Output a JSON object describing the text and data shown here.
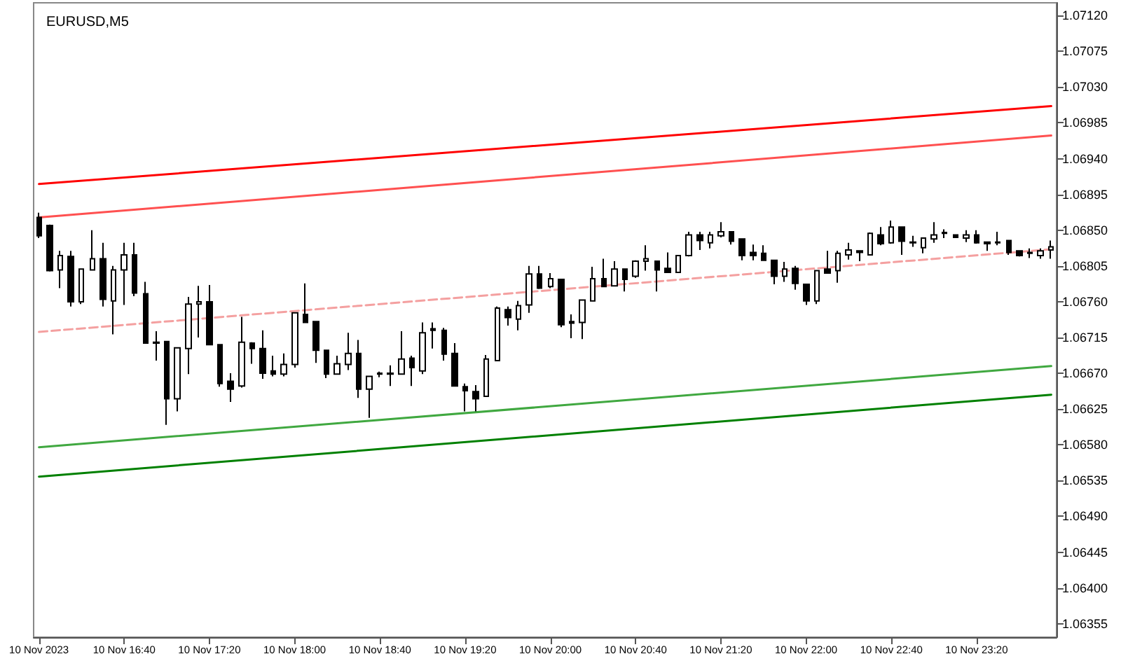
{
  "chart_data": {
    "type": "candlestick",
    "title": "EURUSD,M5",
    "grid": false,
    "marker": "none",
    "categories": [
      "10 Nov 2023",
      null,
      null,
      null,
      null,
      null,
      null,
      null,
      "10 Nov 16:40",
      null,
      null,
      null,
      null,
      null,
      null,
      null,
      "10 Nov 17:20",
      null,
      null,
      null,
      null,
      null,
      null,
      null,
      "10 Nov 18:00",
      null,
      null,
      null,
      null,
      null,
      null,
      null,
      "10 Nov 18:40",
      null,
      null,
      null,
      null,
      null,
      null,
      null,
      "10 Nov 19:20",
      null,
      null,
      null,
      null,
      null,
      null,
      null,
      "10 Nov 20:00",
      null,
      null,
      null,
      null,
      null,
      null,
      null,
      "10 Nov 20:40",
      null,
      null,
      null,
      null,
      null,
      null,
      null,
      "10 Nov 21:20",
      null,
      null,
      null,
      null,
      null,
      null,
      null,
      "10 Nov 22:00",
      null,
      null,
      null,
      null,
      null,
      null,
      null,
      "10 Nov 22:40",
      null,
      null,
      null,
      null,
      null,
      null,
      null,
      "10 Nov 23:20",
      null,
      null,
      null,
      null,
      null,
      null,
      null
    ],
    "ylim": [
      1.06338,
      1.07136
    ],
    "yticks": [
      {
        "value": 1.06355,
        "label": "1.06355"
      },
      {
        "value": 1.064,
        "label": "1.06400"
      },
      {
        "value": 1.06445,
        "label": "1.06445"
      },
      {
        "value": 1.0649,
        "label": "1.06490"
      },
      {
        "value": 1.06535,
        "label": "1.06535"
      },
      {
        "value": 1.0658,
        "label": "1.06580"
      },
      {
        "value": 1.06625,
        "label": "1.06625"
      },
      {
        "value": 1.0667,
        "label": "1.06670"
      },
      {
        "value": 1.06715,
        "label": "1.06715"
      },
      {
        "value": 1.0676,
        "label": "1.06760"
      },
      {
        "value": 1.06805,
        "label": "1.06805"
      },
      {
        "value": 1.0685,
        "label": "1.06850"
      },
      {
        "value": 1.06895,
        "label": "1.06895"
      },
      {
        "value": 1.0694,
        "label": "1.06940"
      },
      {
        "value": 1.06985,
        "label": "1.06985"
      },
      {
        "value": 1.0703,
        "label": "1.07030"
      },
      {
        "value": 1.07075,
        "label": "1.07075"
      },
      {
        "value": 1.0712,
        "label": "1.07120"
      }
    ],
    "series": [
      {
        "type": "line",
        "color": "#ff0000",
        "line_style": "solid",
        "values": [
          1.06908,
          null,
          null,
          null,
          null,
          null,
          null,
          null,
          null,
          null,
          null,
          null,
          null,
          null,
          null,
          null,
          null,
          null,
          null,
          null,
          null,
          null,
          null,
          null,
          null,
          null,
          null,
          null,
          null,
          null,
          null,
          null,
          null,
          null,
          null,
          null,
          null,
          null,
          null,
          null,
          null,
          null,
          null,
          null,
          null,
          null,
          null,
          null,
          null,
          null,
          null,
          null,
          null,
          null,
          null,
          null,
          null,
          null,
          null,
          null,
          null,
          null,
          null,
          null,
          null,
          null,
          null,
          null,
          null,
          null,
          null,
          null,
          null,
          null,
          null,
          null,
          null,
          null,
          null,
          null,
          null,
          null,
          null,
          null,
          null,
          null,
          null,
          null,
          null,
          null,
          null,
          null,
          null,
          null,
          null,
          1.07006
        ]
      },
      {
        "type": "line",
        "color": "#ff5050",
        "line_style": "solid",
        "values": [
          1.06866,
          null,
          null,
          null,
          null,
          null,
          null,
          null,
          null,
          null,
          null,
          null,
          null,
          null,
          null,
          null,
          null,
          null,
          null,
          null,
          null,
          null,
          null,
          null,
          null,
          null,
          null,
          null,
          null,
          null,
          null,
          null,
          null,
          null,
          null,
          null,
          null,
          null,
          null,
          null,
          null,
          null,
          null,
          null,
          null,
          null,
          null,
          null,
          null,
          null,
          null,
          null,
          null,
          null,
          null,
          null,
          null,
          null,
          null,
          null,
          null,
          null,
          null,
          null,
          null,
          null,
          null,
          null,
          null,
          null,
          null,
          null,
          null,
          null,
          null,
          null,
          null,
          null,
          null,
          null,
          null,
          null,
          null,
          null,
          null,
          null,
          null,
          null,
          null,
          null,
          null,
          null,
          null,
          null,
          null,
          1.06969
        ]
      },
      {
        "type": "line",
        "color": "#f4a0a0",
        "line_style": "dashed",
        "values": [
          1.06722,
          null,
          null,
          null,
          null,
          null,
          null,
          null,
          null,
          null,
          null,
          null,
          null,
          null,
          null,
          null,
          null,
          null,
          null,
          null,
          null,
          null,
          null,
          null,
          null,
          null,
          null,
          null,
          null,
          null,
          null,
          null,
          null,
          null,
          null,
          null,
          null,
          null,
          null,
          null,
          null,
          null,
          null,
          null,
          null,
          null,
          null,
          null,
          null,
          null,
          null,
          null,
          null,
          null,
          null,
          null,
          null,
          null,
          null,
          null,
          null,
          null,
          null,
          null,
          null,
          null,
          null,
          null,
          null,
          null,
          null,
          null,
          null,
          null,
          null,
          null,
          null,
          null,
          null,
          null,
          null,
          null,
          null,
          null,
          null,
          null,
          null,
          null,
          null,
          null,
          null,
          null,
          null,
          null,
          null,
          1.06826
        ]
      },
      {
        "type": "line",
        "color": "#40a840",
        "line_style": "solid",
        "values": [
          1.06577,
          null,
          null,
          null,
          null,
          null,
          null,
          null,
          null,
          null,
          null,
          null,
          null,
          null,
          null,
          null,
          null,
          null,
          null,
          null,
          null,
          null,
          null,
          null,
          null,
          null,
          null,
          null,
          null,
          null,
          null,
          null,
          null,
          null,
          null,
          null,
          null,
          null,
          null,
          null,
          null,
          null,
          null,
          null,
          null,
          null,
          null,
          null,
          null,
          null,
          null,
          null,
          null,
          null,
          null,
          null,
          null,
          null,
          null,
          null,
          null,
          null,
          null,
          null,
          null,
          null,
          null,
          null,
          null,
          null,
          null,
          null,
          null,
          null,
          null,
          null,
          null,
          null,
          null,
          null,
          null,
          null,
          null,
          null,
          null,
          null,
          null,
          null,
          null,
          null,
          null,
          null,
          null,
          null,
          null,
          1.06679
        ]
      },
      {
        "type": "line",
        "color": "#008000",
        "line_style": "solid",
        "values": [
          1.0654,
          null,
          null,
          null,
          null,
          null,
          null,
          null,
          null,
          null,
          null,
          null,
          null,
          null,
          null,
          null,
          null,
          null,
          null,
          null,
          null,
          null,
          null,
          null,
          null,
          null,
          null,
          null,
          null,
          null,
          null,
          null,
          null,
          null,
          null,
          null,
          null,
          null,
          null,
          null,
          null,
          null,
          null,
          null,
          null,
          null,
          null,
          null,
          null,
          null,
          null,
          null,
          null,
          null,
          null,
          null,
          null,
          null,
          null,
          null,
          null,
          null,
          null,
          null,
          null,
          null,
          null,
          null,
          null,
          null,
          null,
          null,
          null,
          null,
          null,
          null,
          null,
          null,
          null,
          null,
          null,
          null,
          null,
          null,
          null,
          null,
          null,
          null,
          null,
          null,
          null,
          null,
          null,
          null,
          null,
          1.06643
        ]
      },
      {
        "color": "#000000",
        "ohlc": [
          [
            1.06866,
            1.06872,
            1.0684,
            1.06843
          ],
          [
            1.06856,
            1.06857,
            1.06798,
            1.06799
          ],
          [
            1.068,
            1.06824,
            1.06777,
            1.06818
          ],
          [
            1.06817,
            1.06824,
            1.06754,
            1.0676
          ],
          [
            1.0676,
            1.06802,
            1.06757,
            1.06801
          ],
          [
            1.068,
            1.0685,
            1.06799,
            1.06814
          ],
          [
            1.06814,
            1.06834,
            1.06754,
            1.06763
          ],
          [
            1.06761,
            1.06805,
            1.06719,
            1.068
          ],
          [
            1.068,
            1.06834,
            1.06756,
            1.06819
          ],
          [
            1.06819,
            1.06834,
            1.06767,
            1.06771
          ],
          [
            1.0677,
            1.06785,
            1.06708,
            1.06708
          ],
          [
            1.06709,
            1.06723,
            1.06686,
            1.06708
          ],
          [
            1.0671,
            1.0671,
            1.06605,
            1.06638
          ],
          [
            1.06638,
            1.06702,
            1.06622,
            1.06702
          ],
          [
            1.06701,
            1.06766,
            1.06669,
            1.06757
          ],
          [
            1.06757,
            1.0678,
            1.06715,
            1.0676
          ],
          [
            1.0676,
            1.06781,
            1.06706,
            1.06706
          ],
          [
            1.06706,
            1.06706,
            1.06653,
            1.06657
          ],
          [
            1.0666,
            1.0667,
            1.06634,
            1.0665
          ],
          [
            1.06654,
            1.06741,
            1.06652,
            1.06709
          ],
          [
            1.06708,
            1.06709,
            1.06682,
            1.06701
          ],
          [
            1.06701,
            1.06724,
            1.06663,
            1.0667
          ],
          [
            1.06673,
            1.06692,
            1.06666,
            1.06669
          ],
          [
            1.06669,
            1.06695,
            1.06666,
            1.06681
          ],
          [
            1.06681,
            1.06747,
            1.06677,
            1.06746
          ],
          [
            1.06744,
            1.06783,
            1.06734,
            1.06734
          ],
          [
            1.06735,
            1.06735,
            1.06683,
            1.06699
          ],
          [
            1.06699,
            1.06699,
            1.06664,
            1.06669
          ],
          [
            1.06669,
            1.06692,
            1.06669,
            1.06682
          ],
          [
            1.06681,
            1.06721,
            1.06674,
            1.06695
          ],
          [
            1.06695,
            1.06712,
            1.06639,
            1.0665
          ],
          [
            1.0665,
            1.06666,
            1.06614,
            1.06666
          ],
          [
            1.06669,
            1.06672,
            1.06665,
            1.0667
          ],
          [
            1.06669,
            1.0668,
            1.06654,
            1.0667
          ],
          [
            1.06669,
            1.06723,
            1.06669,
            1.06688
          ],
          [
            1.06689,
            1.06692,
            1.06654,
            1.06677
          ],
          [
            1.06673,
            1.06734,
            1.06669,
            1.06721
          ],
          [
            1.06726,
            1.06734,
            1.06701,
            1.06724
          ],
          [
            1.06724,
            1.06727,
            1.06686,
            1.06694
          ],
          [
            1.06695,
            1.06708,
            1.06653,
            1.06654
          ],
          [
            1.06653,
            1.06657,
            1.06622,
            1.06648
          ],
          [
            1.06647,
            1.06655,
            1.06622,
            1.06638
          ],
          [
            1.06641,
            1.06693,
            1.06641,
            1.06688
          ],
          [
            1.06686,
            1.06754,
            1.06686,
            1.06752
          ],
          [
            1.0675,
            1.06754,
            1.0673,
            1.0674
          ],
          [
            1.06738,
            1.06761,
            1.06724,
            1.06755
          ],
          [
            1.06756,
            1.06805,
            1.06746,
            1.06795
          ],
          [
            1.06795,
            1.06805,
            1.06776,
            1.06777
          ],
          [
            1.06779,
            1.06796,
            1.06777,
            1.06789
          ],
          [
            1.06788,
            1.06789,
            1.06728,
            1.06731
          ],
          [
            1.06735,
            1.06744,
            1.06714,
            1.06733
          ],
          [
            1.06734,
            1.06763,
            1.06713,
            1.06762
          ],
          [
            1.06761,
            1.06804,
            1.06761,
            1.06789
          ],
          [
            1.06789,
            1.06814,
            1.06779,
            1.06779
          ],
          [
            1.0678,
            1.06811,
            1.0678,
            1.06801
          ],
          [
            1.06801,
            1.06802,
            1.06773,
            1.06788
          ],
          [
            1.06792,
            1.06812,
            1.0679,
            1.06811
          ],
          [
            1.06811,
            1.06831,
            1.06799,
            1.06814
          ],
          [
            1.06811,
            1.06811,
            1.06773,
            1.068
          ],
          [
            1.06802,
            1.06822,
            1.06796,
            1.06797
          ],
          [
            1.06797,
            1.06818,
            1.06796,
            1.06818
          ],
          [
            1.06818,
            1.06848,
            1.06817,
            1.06844
          ],
          [
            1.06844,
            1.06848,
            1.06825,
            1.06837
          ],
          [
            1.06834,
            1.06848,
            1.06827,
            1.06844
          ],
          [
            1.06843,
            1.0686,
            1.06841,
            1.06848
          ],
          [
            1.06848,
            1.06848,
            1.06832,
            1.06836
          ],
          [
            1.06839,
            1.06839,
            1.06812,
            1.06818
          ],
          [
            1.06822,
            1.06832,
            1.06812,
            1.06818
          ],
          [
            1.06821,
            1.06831,
            1.06812,
            1.06812
          ],
          [
            1.06812,
            1.06812,
            1.06782,
            1.06792
          ],
          [
            1.06792,
            1.0681,
            1.06785,
            1.06801
          ],
          [
            1.06802,
            1.06805,
            1.06775,
            1.06783
          ],
          [
            1.06782,
            1.06782,
            1.06756,
            1.06761
          ],
          [
            1.06761,
            1.068,
            1.06757,
            1.06799
          ],
          [
            1.06801,
            1.06824,
            1.06796,
            1.06796
          ],
          [
            1.06799,
            1.06824,
            1.06784,
            1.06821
          ],
          [
            1.06819,
            1.06834,
            1.06813,
            1.06825
          ],
          [
            1.06824,
            1.06824,
            1.06811,
            1.06822
          ],
          [
            1.06819,
            1.06847,
            1.06819,
            1.06846
          ],
          [
            1.06844,
            1.06854,
            1.06831,
            1.06833
          ],
          [
            1.06834,
            1.06862,
            1.06833,
            1.06854
          ],
          [
            1.06854,
            1.06854,
            1.06819,
            1.06836
          ],
          [
            1.06834,
            1.06843,
            1.06829,
            1.06835
          ],
          [
            1.06828,
            1.06841,
            1.06821,
            1.0684
          ],
          [
            1.06839,
            1.0686,
            1.06834,
            1.06844
          ],
          [
            1.06847,
            1.06851,
            1.0684,
            1.06846
          ],
          [
            1.06844,
            1.06844,
            1.0684,
            1.06841
          ],
          [
            1.0684,
            1.0685,
            1.06835,
            1.06844
          ],
          [
            1.06844,
            1.0685,
            1.06833,
            1.06834
          ],
          [
            1.06835,
            1.06835,
            1.06824,
            1.06833
          ],
          [
            1.06835,
            1.06848,
            1.06831,
            1.06834
          ],
          [
            1.06837,
            1.06837,
            1.06819,
            1.06822
          ],
          [
            1.06824,
            1.06824,
            1.06817,
            1.06818
          ],
          [
            1.06821,
            1.06827,
            1.06815,
            1.06822
          ],
          [
            1.06818,
            1.06827,
            1.06814,
            1.06824
          ],
          [
            1.06825,
            1.06837,
            1.06814,
            1.06829
          ]
        ]
      }
    ]
  }
}
